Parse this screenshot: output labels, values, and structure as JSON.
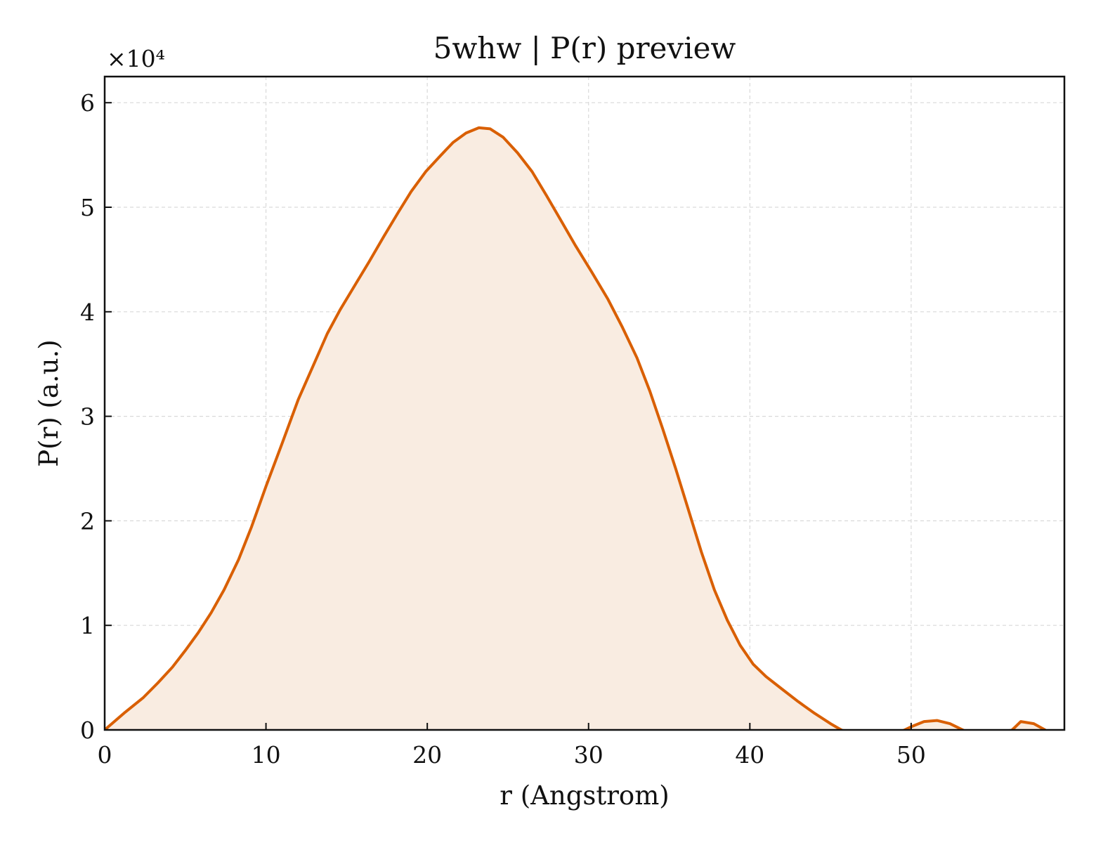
{
  "chart_data": {
    "type": "area",
    "title": "5whw | P(r) preview",
    "xlabel": "r (Angstrom)",
    "ylabel": "P(r) (a.u.)",
    "y_multiplier_label": "×10⁴",
    "xlim": [
      0,
      59.5
    ],
    "ylim": [
      0,
      62500
    ],
    "xticks": [
      0,
      10,
      20,
      30,
      40,
      50
    ],
    "yticks": [
      0,
      10000,
      20000,
      30000,
      40000,
      50000,
      60000
    ],
    "xtick_labels": [
      "0",
      "10",
      "20",
      "30",
      "40",
      "50"
    ],
    "ytick_labels": [
      "0",
      "1",
      "2",
      "3",
      "4",
      "5",
      "6"
    ],
    "grid": true,
    "line_color": "#d95f02",
    "fill_color": "#f9ece1",
    "series": [
      {
        "x": [
          0,
          1.2,
          2.4,
          3.3,
          4.2,
          5.0,
          5.8,
          6.6,
          7.4,
          8.3,
          9.1,
          10.0,
          11.0,
          12.0,
          13.0,
          13.8,
          14.6,
          15.5,
          16.4,
          17.3,
          18.2,
          19.0,
          19.9,
          20.8,
          21.6,
          22.4,
          23.2,
          23.9,
          24.7,
          25.6,
          26.5,
          27.4,
          28.3,
          29.2,
          30.2,
          31.2,
          32.1,
          33.0,
          33.8,
          34.6,
          35.4,
          36.2,
          37.0,
          37.8,
          38.6,
          39.4,
          40.2,
          41.0,
          42.0,
          43.0,
          44.0,
          45.0,
          46.0,
          46.8,
          47.6,
          48.4,
          49.2,
          50.0,
          50.8,
          51.6,
          52.4,
          53.2,
          54.0,
          55.0,
          56.0,
          56.8,
          57.6,
          58.3
        ],
        "y": [
          0,
          1600,
          3100,
          4500,
          6000,
          7600,
          9300,
          11200,
          13400,
          16300,
          19400,
          23300,
          27400,
          31600,
          35100,
          37900,
          40200,
          42500,
          44800,
          47200,
          49500,
          51500,
          53400,
          54900,
          56200,
          57100,
          57600,
          57500,
          56700,
          55200,
          53400,
          51100,
          48700,
          46300,
          43800,
          41200,
          38500,
          35600,
          32400,
          28800,
          25000,
          21000,
          17000,
          13400,
          10500,
          8100,
          6300,
          5100,
          3900,
          2700,
          1600,
          600,
          -300,
          -900,
          -900,
          -700,
          -300,
          300,
          800,
          900,
          600,
          0,
          -700,
          -1000,
          -400,
          800,
          600,
          0
        ]
      }
    ]
  }
}
